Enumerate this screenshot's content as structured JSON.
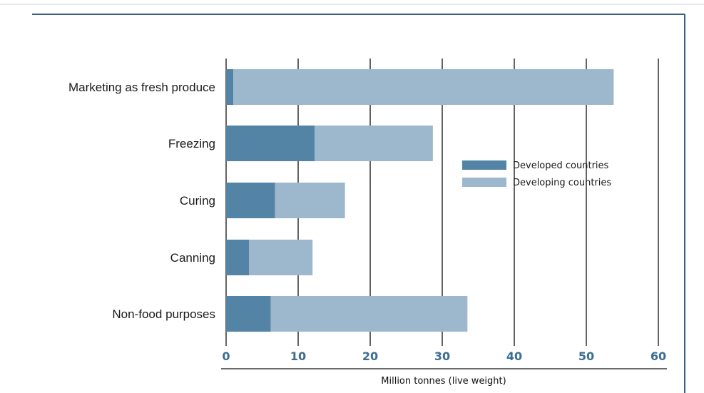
{
  "chart_data": {
    "type": "bar",
    "orientation": "horizontal",
    "stacked": true,
    "categories": [
      "Marketing as fresh produce",
      "Freezing",
      "Curing",
      "Canning",
      "Non-food purposes"
    ],
    "series": [
      {
        "name": "Developed countries",
        "values": [
          1,
          12.3,
          6.8,
          3.2,
          6.2
        ]
      },
      {
        "name": "Developing countries",
        "values": [
          52.8,
          16.4,
          9.7,
          8.8,
          27.3
        ]
      }
    ],
    "colors": {
      "Developed countries": "#5383a5",
      "Developing countries": "#9db8cc"
    },
    "xlabel": "Million tonnes (live weight)",
    "xlim": [
      0,
      60
    ],
    "xticks": [
      0,
      10,
      20,
      30,
      40,
      50,
      60
    ],
    "grid": true,
    "legend_position": "right"
  }
}
